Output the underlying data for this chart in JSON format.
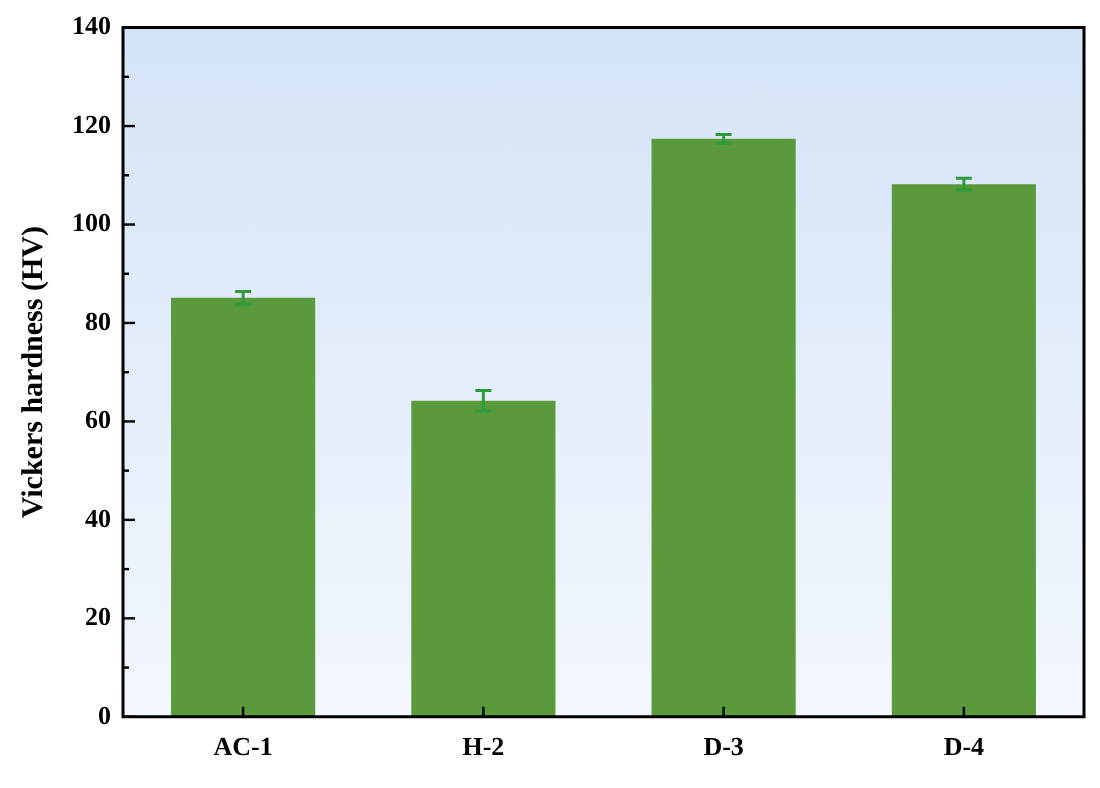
{
  "chart_data": {
    "type": "bar",
    "ylabel": "Vickers hardness (HV)",
    "categories": [
      "AC-1",
      "H-2",
      "D-3",
      "D-4"
    ],
    "values": [
      85.1,
      64.2,
      117.4,
      108.2
    ],
    "errors": [
      1.3,
      2.1,
      0.9,
      1.2
    ],
    "color": "#5a9a3c",
    "ylim": [
      0,
      140
    ],
    "yticks": [
      0,
      20,
      40,
      60,
      80,
      100,
      120,
      140
    ],
    "grid": false,
    "legend": false
  }
}
